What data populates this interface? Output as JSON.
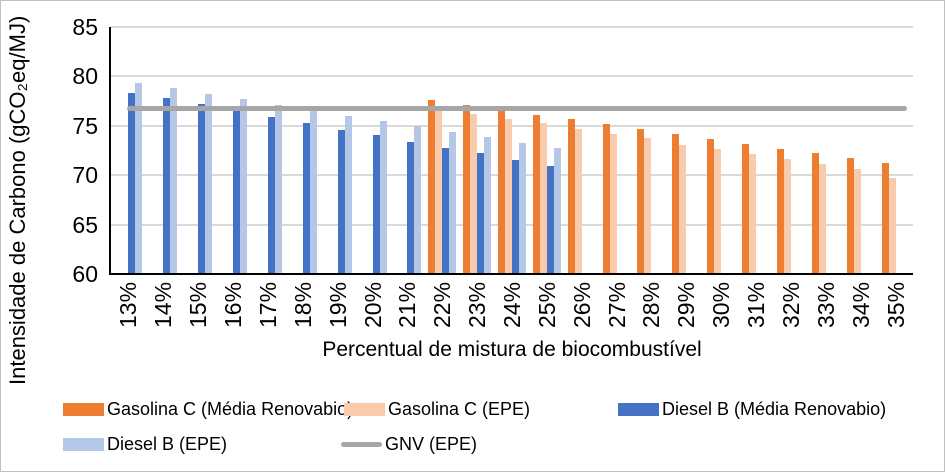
{
  "figure_border_color": "#BFBFBF",
  "colors": {
    "gasolina_media": "#ED7D31",
    "gasolina_epe": "#F8CBAD",
    "diesel_media": "#4472C4",
    "diesel_epe": "#B4C7E7",
    "gnv_line": "#A6A6A6",
    "gridline": "#D9D9D9",
    "axis": "#000000",
    "text": "#000000"
  },
  "legend": {
    "items": [
      {
        "label": "Gasolina C (Média Renovabio)",
        "color": "#ED7D31",
        "swatch": "bar"
      },
      {
        "label": "Gasolina C (EPE)",
        "color": "#F8CBAD",
        "swatch": "bar"
      },
      {
        "label": "Diesel B (Média Renovabio)",
        "color": "#4472C4",
        "swatch": "bar"
      },
      {
        "label": "Diesel B (EPE)",
        "color": "#B4C7E7",
        "swatch": "bar"
      },
      {
        "label": "GNV (EPE)",
        "color": "#A6A6A6",
        "swatch": "line"
      }
    ]
  },
  "chart_data": {
    "type": "bar",
    "title": "",
    "xlabel": "Percentual de mistura de biocombustível",
    "ylabel": "Intensidade de Carbono (gCO₂eq/MJ)",
    "ylim": [
      60,
      85
    ],
    "yticks": [
      60,
      65,
      70,
      75,
      80,
      85
    ],
    "grid": true,
    "legend_position": "bottom",
    "categories": [
      "13%",
      "14%",
      "15%",
      "16%",
      "17%",
      "18%",
      "19%",
      "20%",
      "21%",
      "22%",
      "23%",
      "24%",
      "25%",
      "26%",
      "27%",
      "28%",
      "29%",
      "30%",
      "31%",
      "32%",
      "33%",
      "34%",
      "35%"
    ],
    "series": [
      {
        "name": "Gasolina C (Média Renovabio)",
        "type": "bar",
        "color": "#ED7D31",
        "values": [
          null,
          null,
          null,
          null,
          null,
          null,
          null,
          null,
          null,
          77.6,
          77.1,
          76.6,
          76.1,
          75.7,
          75.2,
          74.7,
          74.2,
          73.7,
          73.2,
          72.7,
          72.2,
          71.7,
          71.2
        ]
      },
      {
        "name": "Gasolina C (EPE)",
        "type": "bar",
        "color": "#F8CBAD",
        "values": [
          null,
          null,
          null,
          null,
          null,
          null,
          null,
          null,
          null,
          76.5,
          76.2,
          75.7,
          75.3,
          74.7,
          74.2,
          73.8,
          73.1,
          72.7,
          72.1,
          71.6,
          71.1,
          70.6,
          69.7
        ]
      },
      {
        "name": "Diesel B (Média Renovabio)",
        "type": "bar",
        "color": "#4472C4",
        "values": [
          78.3,
          77.8,
          77.2,
          76.7,
          75.9,
          75.3,
          74.6,
          74.1,
          73.4,
          72.8,
          72.2,
          71.5,
          70.9,
          null,
          null,
          null,
          null,
          null,
          null,
          null,
          null,
          null,
          null
        ]
      },
      {
        "name": "Diesel B (EPE)",
        "type": "bar",
        "color": "#B4C7E7",
        "values": [
          79.3,
          78.8,
          78.2,
          77.7,
          77.1,
          76.5,
          76.0,
          75.5,
          75.0,
          74.4,
          73.9,
          73.3,
          72.8,
          null,
          null,
          null,
          null,
          null,
          null,
          null,
          null,
          null,
          null
        ]
      },
      {
        "name": "GNV (EPE)",
        "type": "line",
        "color": "#A6A6A6",
        "values": [
          76.8,
          76.8,
          76.8,
          76.8,
          76.8,
          76.8,
          76.8,
          76.8,
          76.8,
          76.8,
          76.8,
          76.8,
          76.8,
          76.8,
          76.8,
          76.8,
          76.8,
          76.8,
          76.8,
          76.8,
          76.8,
          76.8,
          76.8
        ]
      }
    ]
  }
}
